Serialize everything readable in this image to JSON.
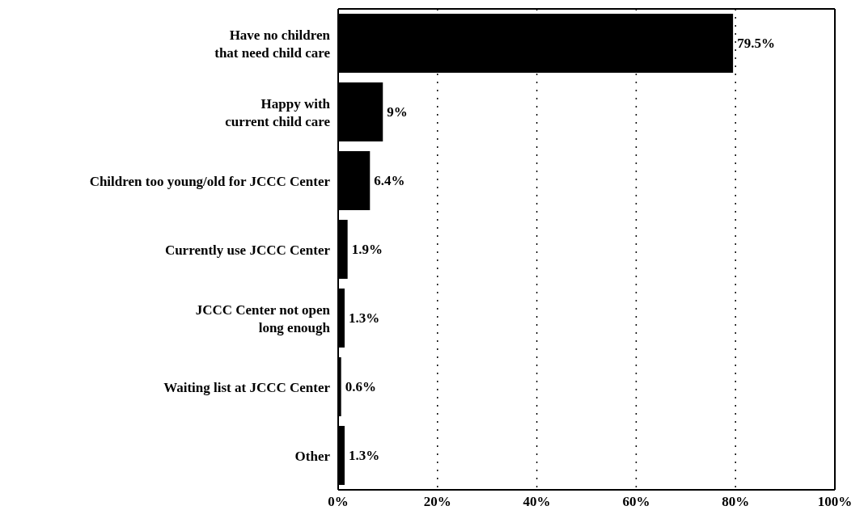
{
  "chart_data": {
    "type": "bar",
    "orientation": "horizontal",
    "categories": [
      "Have no children\nthat need child care",
      "Happy with\ncurrent child care",
      "Children too young/old for JCCC Center",
      "Currently use JCCC Center",
      "JCCC Center not open\nlong enough",
      "Waiting list at JCCC Center",
      "Other"
    ],
    "values": [
      79.5,
      9,
      6.4,
      1.9,
      1.3,
      0.6,
      1.3
    ],
    "value_labels": [
      "79.5%",
      "9%",
      "6.4%",
      "1.9%",
      "1.3%",
      "0.6%",
      "1.3%"
    ],
    "color": "#000000",
    "xlim": [
      0,
      100
    ],
    "xticks": [
      {
        "value": 0,
        "label": "0%"
      },
      {
        "value": 20,
        "label": "20%"
      },
      {
        "value": 40,
        "label": "40%"
      },
      {
        "value": 60,
        "label": "60%"
      },
      {
        "value": 80,
        "label": "80%"
      },
      {
        "value": 100,
        "label": "100%"
      }
    ],
    "grid": "x"
  }
}
